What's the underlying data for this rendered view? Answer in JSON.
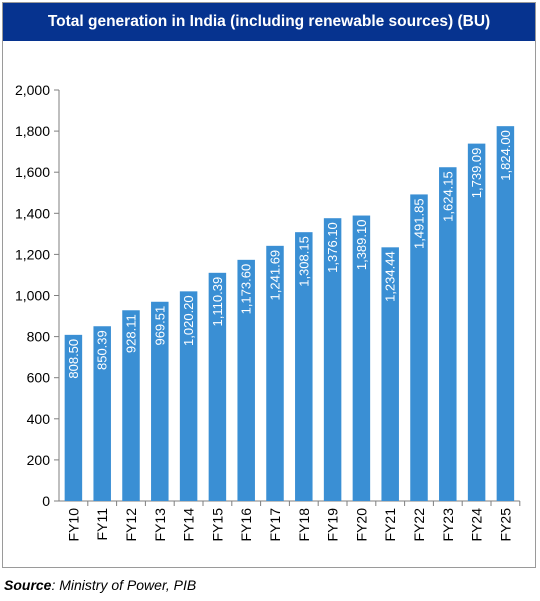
{
  "chart_data": {
    "type": "bar",
    "title": "Total generation in India (including renewable sources) (BU)",
    "categories": [
      "FY10",
      "FY11",
      "FY12",
      "FY13",
      "FY14",
      "FY15",
      "FY16",
      "FY17",
      "FY18",
      "FY19",
      "FY20",
      "FY21",
      "FY22",
      "FY23",
      "FY24",
      "FY25"
    ],
    "values": [
      808.5,
      850.39,
      928.11,
      969.51,
      1020.2,
      1110.39,
      1173.6,
      1241.69,
      1308.15,
      1376.1,
      1389.1,
      1234.44,
      1491.85,
      1624.15,
      1739.09,
      1824.0
    ],
    "value_labels": [
      "808.50",
      "850.39",
      "928.11",
      "969.51",
      "1,020.20",
      "1,110.39",
      "1,173.60",
      "1,241.69",
      "1,308.15",
      "1,376.10",
      "1,389.10",
      "1,234.44",
      "1,491.85",
      "1,624.15",
      "1,739.09",
      "1,824.00"
    ],
    "ylim": [
      0,
      2000
    ],
    "yticks": [
      0,
      200,
      400,
      600,
      800,
      1000,
      1200,
      1400,
      1600,
      1800,
      2000
    ],
    "ytick_labels": [
      "0",
      "200",
      "400",
      "600",
      "800",
      "1,000",
      "1,200",
      "1,400",
      "1,600",
      "1,800",
      "2,000"
    ],
    "grid": false,
    "bar_color": "#3a8fd4"
  },
  "header_color": "#06338f",
  "source": {
    "label": "Source",
    "text": ": Ministry of Power, PIB"
  }
}
